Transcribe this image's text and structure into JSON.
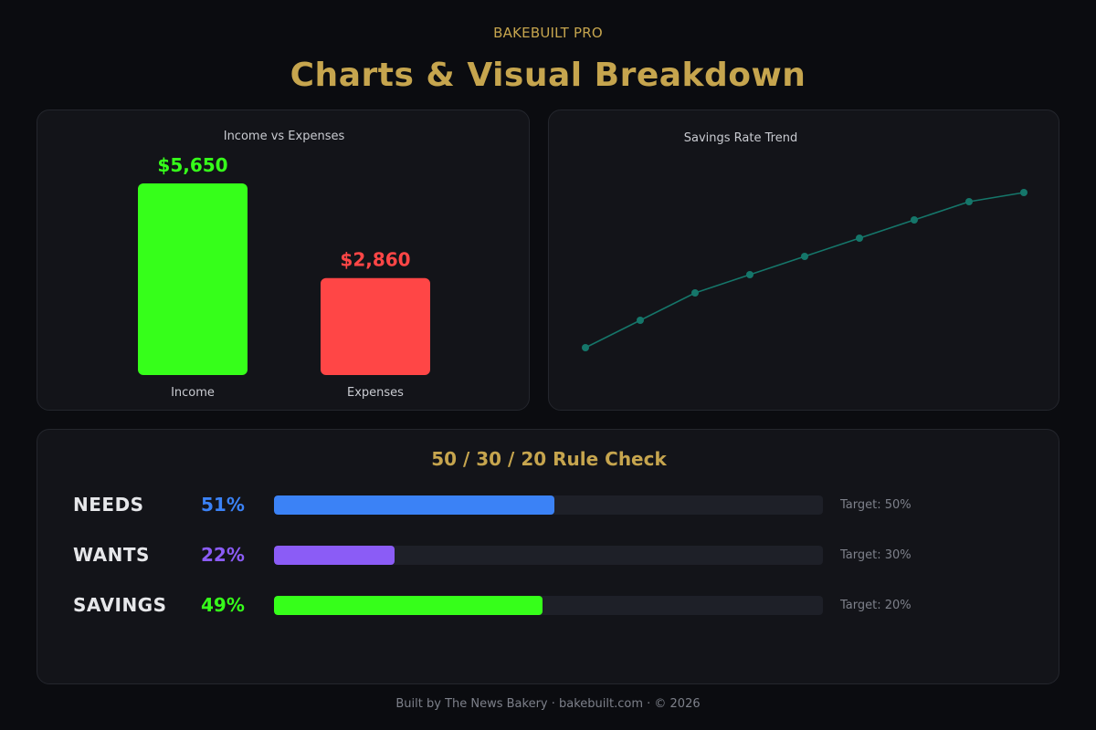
{
  "header": {
    "brand": "BAKEBUILT PRO",
    "title": "Charts & Visual Breakdown"
  },
  "income_expenses": {
    "title": "Income vs Expenses",
    "bars": [
      {
        "label": "Income",
        "value": 5650,
        "display": "$5,650",
        "color": "#36ff1a"
      },
      {
        "label": "Expenses",
        "value": 2860,
        "display": "$2,860",
        "color": "#ff4646"
      }
    ]
  },
  "savings_trend": {
    "title": "Savings Rate Trend",
    "color": "#15766a"
  },
  "chart_data": [
    {
      "type": "bar",
      "title": "Income vs Expenses",
      "categories": [
        "Income",
        "Expenses"
      ],
      "values": [
        5650,
        2860
      ],
      "data_labels": [
        "$5,650",
        "$2,860"
      ],
      "ylim": [
        0,
        5650
      ],
      "grid": false
    },
    {
      "type": "line",
      "title": "Savings Rate Trend",
      "x": [
        1,
        2,
        3,
        4,
        5,
        6,
        7,
        8,
        9
      ],
      "values": [
        0,
        1.5,
        3,
        4,
        5,
        6,
        7,
        8,
        8.5
      ],
      "ylim": [
        0,
        8.5
      ],
      "grid": false,
      "axes_visible": false
    }
  ],
  "rule_check": {
    "title": "50 / 30 / 20 Rule Check",
    "rows": [
      {
        "label": "NEEDS",
        "pct_text": "51%",
        "fraction": 0.51,
        "target": "Target: 50%",
        "color": "#3b82f6"
      },
      {
        "label": "WANTS",
        "pct_text": "22%",
        "fraction": 0.22,
        "target": "Target: 30%",
        "color": "#8b5cf6"
      },
      {
        "label": "SAVINGS",
        "pct_text": "49%",
        "fraction": 0.49,
        "target": "Target: 20%",
        "color": "#36ff1a"
      }
    ]
  },
  "footer": {
    "text": "Built by The News Bakery · bakebuilt.com · © 2026"
  }
}
